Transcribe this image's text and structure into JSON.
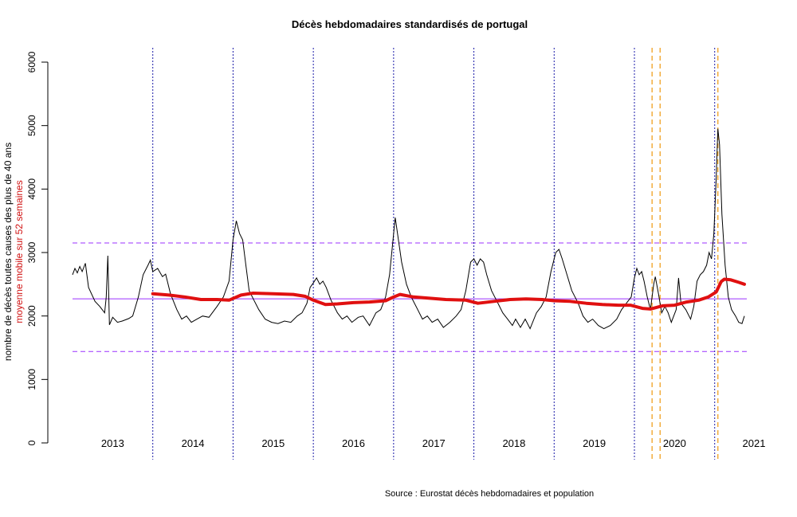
{
  "chart_data": {
    "type": "line",
    "title": "Décès hebdomadaires standardisés de portugal",
    "ylabel": "nombre de décès toutes causes des plus de 40 ans",
    "ylabel2": "moyenne mobile sur 52 semaines",
    "source": "Source : Eurostat décès hebdomadaires et population",
    "ylim": [
      0,
      6000
    ],
    "yticks": [
      "0",
      "1000",
      "2000",
      "3000",
      "4000",
      "5000",
      "6000"
    ],
    "years": [
      "2013",
      "2014",
      "2015",
      "2016",
      "2017",
      "2018",
      "2019",
      "2020",
      "2021"
    ],
    "x_range_years": [
      2013.0,
      2021.4
    ],
    "year_boundaries": [
      2014,
      2015,
      2016,
      2017,
      2018,
      2019,
      2020,
      2021
    ],
    "extra_markers": [
      2020.22,
      2020.32,
      2021.04
    ],
    "hlines": {
      "mean": 2270,
      "upper": 3150,
      "lower": 1440
    },
    "weekly_keypoints": [
      [
        2013.0,
        2650
      ],
      [
        2013.03,
        2750
      ],
      [
        2013.06,
        2680
      ],
      [
        2013.09,
        2780
      ],
      [
        2013.12,
        2700
      ],
      [
        2013.16,
        2830
      ],
      [
        2013.2,
        2450
      ],
      [
        2013.28,
        2230
      ],
      [
        2013.34,
        2150
      ],
      [
        2013.4,
        2050
      ],
      [
        2013.42,
        2300
      ],
      [
        2013.44,
        2950
      ],
      [
        2013.46,
        1860
      ],
      [
        2013.5,
        1980
      ],
      [
        2013.56,
        1900
      ],
      [
        2013.62,
        1920
      ],
      [
        2013.7,
        1960
      ],
      [
        2013.75,
        2000
      ],
      [
        2013.82,
        2300
      ],
      [
        2013.88,
        2650
      ],
      [
        2013.94,
        2800
      ],
      [
        2013.97,
        2880
      ],
      [
        2014.0,
        2700
      ],
      [
        2014.06,
        2750
      ],
      [
        2014.12,
        2620
      ],
      [
        2014.16,
        2660
      ],
      [
        2014.22,
        2350
      ],
      [
        2014.3,
        2100
      ],
      [
        2014.36,
        1950
      ],
      [
        2014.42,
        2000
      ],
      [
        2014.48,
        1900
      ],
      [
        2014.55,
        1950
      ],
      [
        2014.62,
        2000
      ],
      [
        2014.7,
        1980
      ],
      [
        2014.8,
        2150
      ],
      [
        2014.88,
        2300
      ],
      [
        2014.95,
        2550
      ],
      [
        2015.0,
        3200
      ],
      [
        2015.04,
        3500
      ],
      [
        2015.08,
        3300
      ],
      [
        2015.12,
        3200
      ],
      [
        2015.16,
        2800
      ],
      [
        2015.2,
        2400
      ],
      [
        2015.26,
        2250
      ],
      [
        2015.32,
        2100
      ],
      [
        2015.4,
        1950
      ],
      [
        2015.48,
        1900
      ],
      [
        2015.56,
        1880
      ],
      [
        2015.64,
        1920
      ],
      [
        2015.72,
        1900
      ],
      [
        2015.8,
        2000
      ],
      [
        2015.86,
        2050
      ],
      [
        2015.92,
        2200
      ],
      [
        2015.96,
        2450
      ],
      [
        2016.0,
        2520
      ],
      [
        2016.04,
        2600
      ],
      [
        2016.08,
        2500
      ],
      [
        2016.12,
        2550
      ],
      [
        2016.16,
        2450
      ],
      [
        2016.22,
        2250
      ],
      [
        2016.3,
        2050
      ],
      [
        2016.36,
        1950
      ],
      [
        2016.42,
        2000
      ],
      [
        2016.48,
        1900
      ],
      [
        2016.56,
        1980
      ],
      [
        2016.62,
        2000
      ],
      [
        2016.7,
        1850
      ],
      [
        2016.78,
        2050
      ],
      [
        2016.84,
        2100
      ],
      [
        2016.9,
        2300
      ],
      [
        2016.95,
        2650
      ],
      [
        2017.0,
        3300
      ],
      [
        2017.02,
        3550
      ],
      [
        2017.06,
        3200
      ],
      [
        2017.1,
        2850
      ],
      [
        2017.16,
        2500
      ],
      [
        2017.22,
        2300
      ],
      [
        2017.3,
        2100
      ],
      [
        2017.36,
        1950
      ],
      [
        2017.42,
        2000
      ],
      [
        2017.48,
        1900
      ],
      [
        2017.55,
        1950
      ],
      [
        2017.62,
        1820
      ],
      [
        2017.7,
        1900
      ],
      [
        2017.78,
        2000
      ],
      [
        2017.84,
        2100
      ],
      [
        2017.9,
        2400
      ],
      [
        2017.96,
        2850
      ],
      [
        2018.0,
        2900
      ],
      [
        2018.04,
        2800
      ],
      [
        2018.08,
        2900
      ],
      [
        2018.12,
        2850
      ],
      [
        2018.16,
        2650
      ],
      [
        2018.22,
        2400
      ],
      [
        2018.3,
        2200
      ],
      [
        2018.36,
        2050
      ],
      [
        2018.42,
        1950
      ],
      [
        2018.48,
        1850
      ],
      [
        2018.52,
        1950
      ],
      [
        2018.58,
        1820
      ],
      [
        2018.64,
        1950
      ],
      [
        2018.7,
        1800
      ],
      [
        2018.78,
        2050
      ],
      [
        2018.84,
        2150
      ],
      [
        2018.9,
        2300
      ],
      [
        2018.96,
        2700
      ],
      [
        2019.02,
        3000
      ],
      [
        2019.06,
        3050
      ],
      [
        2019.1,
        2900
      ],
      [
        2019.16,
        2650
      ],
      [
        2019.22,
        2400
      ],
      [
        2019.3,
        2200
      ],
      [
        2019.36,
        2000
      ],
      [
        2019.42,
        1900
      ],
      [
        2019.48,
        1950
      ],
      [
        2019.55,
        1850
      ],
      [
        2019.62,
        1800
      ],
      [
        2019.7,
        1850
      ],
      [
        2019.78,
        1950
      ],
      [
        2019.84,
        2100
      ],
      [
        2019.9,
        2200
      ],
      [
        2019.96,
        2300
      ],
      [
        2020.0,
        2600
      ],
      [
        2020.03,
        2750
      ],
      [
        2020.06,
        2650
      ],
      [
        2020.09,
        2700
      ],
      [
        2020.12,
        2550
      ],
      [
        2020.16,
        2300
      ],
      [
        2020.2,
        2100
      ],
      [
        2020.24,
        2500
      ],
      [
        2020.26,
        2620
      ],
      [
        2020.3,
        2350
      ],
      [
        2020.34,
        2050
      ],
      [
        2020.38,
        2150
      ],
      [
        2020.42,
        2050
      ],
      [
        2020.46,
        1900
      ],
      [
        2020.52,
        2100
      ],
      [
        2020.55,
        2600
      ],
      [
        2020.58,
        2200
      ],
      [
        2020.64,
        2100
      ],
      [
        2020.7,
        1950
      ],
      [
        2020.74,
        2150
      ],
      [
        2020.78,
        2550
      ],
      [
        2020.82,
        2650
      ],
      [
        2020.86,
        2700
      ],
      [
        2020.9,
        2800
      ],
      [
        2020.93,
        3000
      ],
      [
        2020.96,
        2900
      ],
      [
        2020.99,
        3300
      ],
      [
        2021.02,
        4200
      ],
      [
        2021.04,
        4950
      ],
      [
        2021.06,
        4700
      ],
      [
        2021.09,
        3600
      ],
      [
        2021.13,
        2800
      ],
      [
        2021.17,
        2300
      ],
      [
        2021.21,
        2100
      ],
      [
        2021.26,
        2000
      ],
      [
        2021.3,
        1900
      ],
      [
        2021.34,
        1880
      ],
      [
        2021.37,
        2000
      ]
    ],
    "moving_avg_keypoints": [
      [
        2014.0,
        2350
      ],
      [
        2014.2,
        2330
      ],
      [
        2014.4,
        2300
      ],
      [
        2014.6,
        2260
      ],
      [
        2014.8,
        2260
      ],
      [
        2014.95,
        2250
      ],
      [
        2015.1,
        2330
      ],
      [
        2015.25,
        2360
      ],
      [
        2015.5,
        2350
      ],
      [
        2015.75,
        2340
      ],
      [
        2015.9,
        2310
      ],
      [
        2016.0,
        2250
      ],
      [
        2016.15,
        2180
      ],
      [
        2016.3,
        2190
      ],
      [
        2016.5,
        2210
      ],
      [
        2016.7,
        2220
      ],
      [
        2016.9,
        2240
      ],
      [
        2017.0,
        2300
      ],
      [
        2017.08,
        2340
      ],
      [
        2017.25,
        2300
      ],
      [
        2017.45,
        2280
      ],
      [
        2017.65,
        2260
      ],
      [
        2017.9,
        2250
      ],
      [
        2018.05,
        2200
      ],
      [
        2018.25,
        2230
      ],
      [
        2018.45,
        2260
      ],
      [
        2018.65,
        2270
      ],
      [
        2018.85,
        2260
      ],
      [
        2019.0,
        2240
      ],
      [
        2019.2,
        2230
      ],
      [
        2019.4,
        2200
      ],
      [
        2019.6,
        2180
      ],
      [
        2019.8,
        2170
      ],
      [
        2019.95,
        2170
      ],
      [
        2020.1,
        2120
      ],
      [
        2020.2,
        2110
      ],
      [
        2020.35,
        2160
      ],
      [
        2020.5,
        2170
      ],
      [
        2020.65,
        2220
      ],
      [
        2020.8,
        2250
      ],
      [
        2020.92,
        2300
      ],
      [
        2021.02,
        2380
      ],
      [
        2021.08,
        2540
      ],
      [
        2021.12,
        2580
      ],
      [
        2021.2,
        2570
      ],
      [
        2021.3,
        2530
      ],
      [
        2021.37,
        2500
      ]
    ]
  }
}
